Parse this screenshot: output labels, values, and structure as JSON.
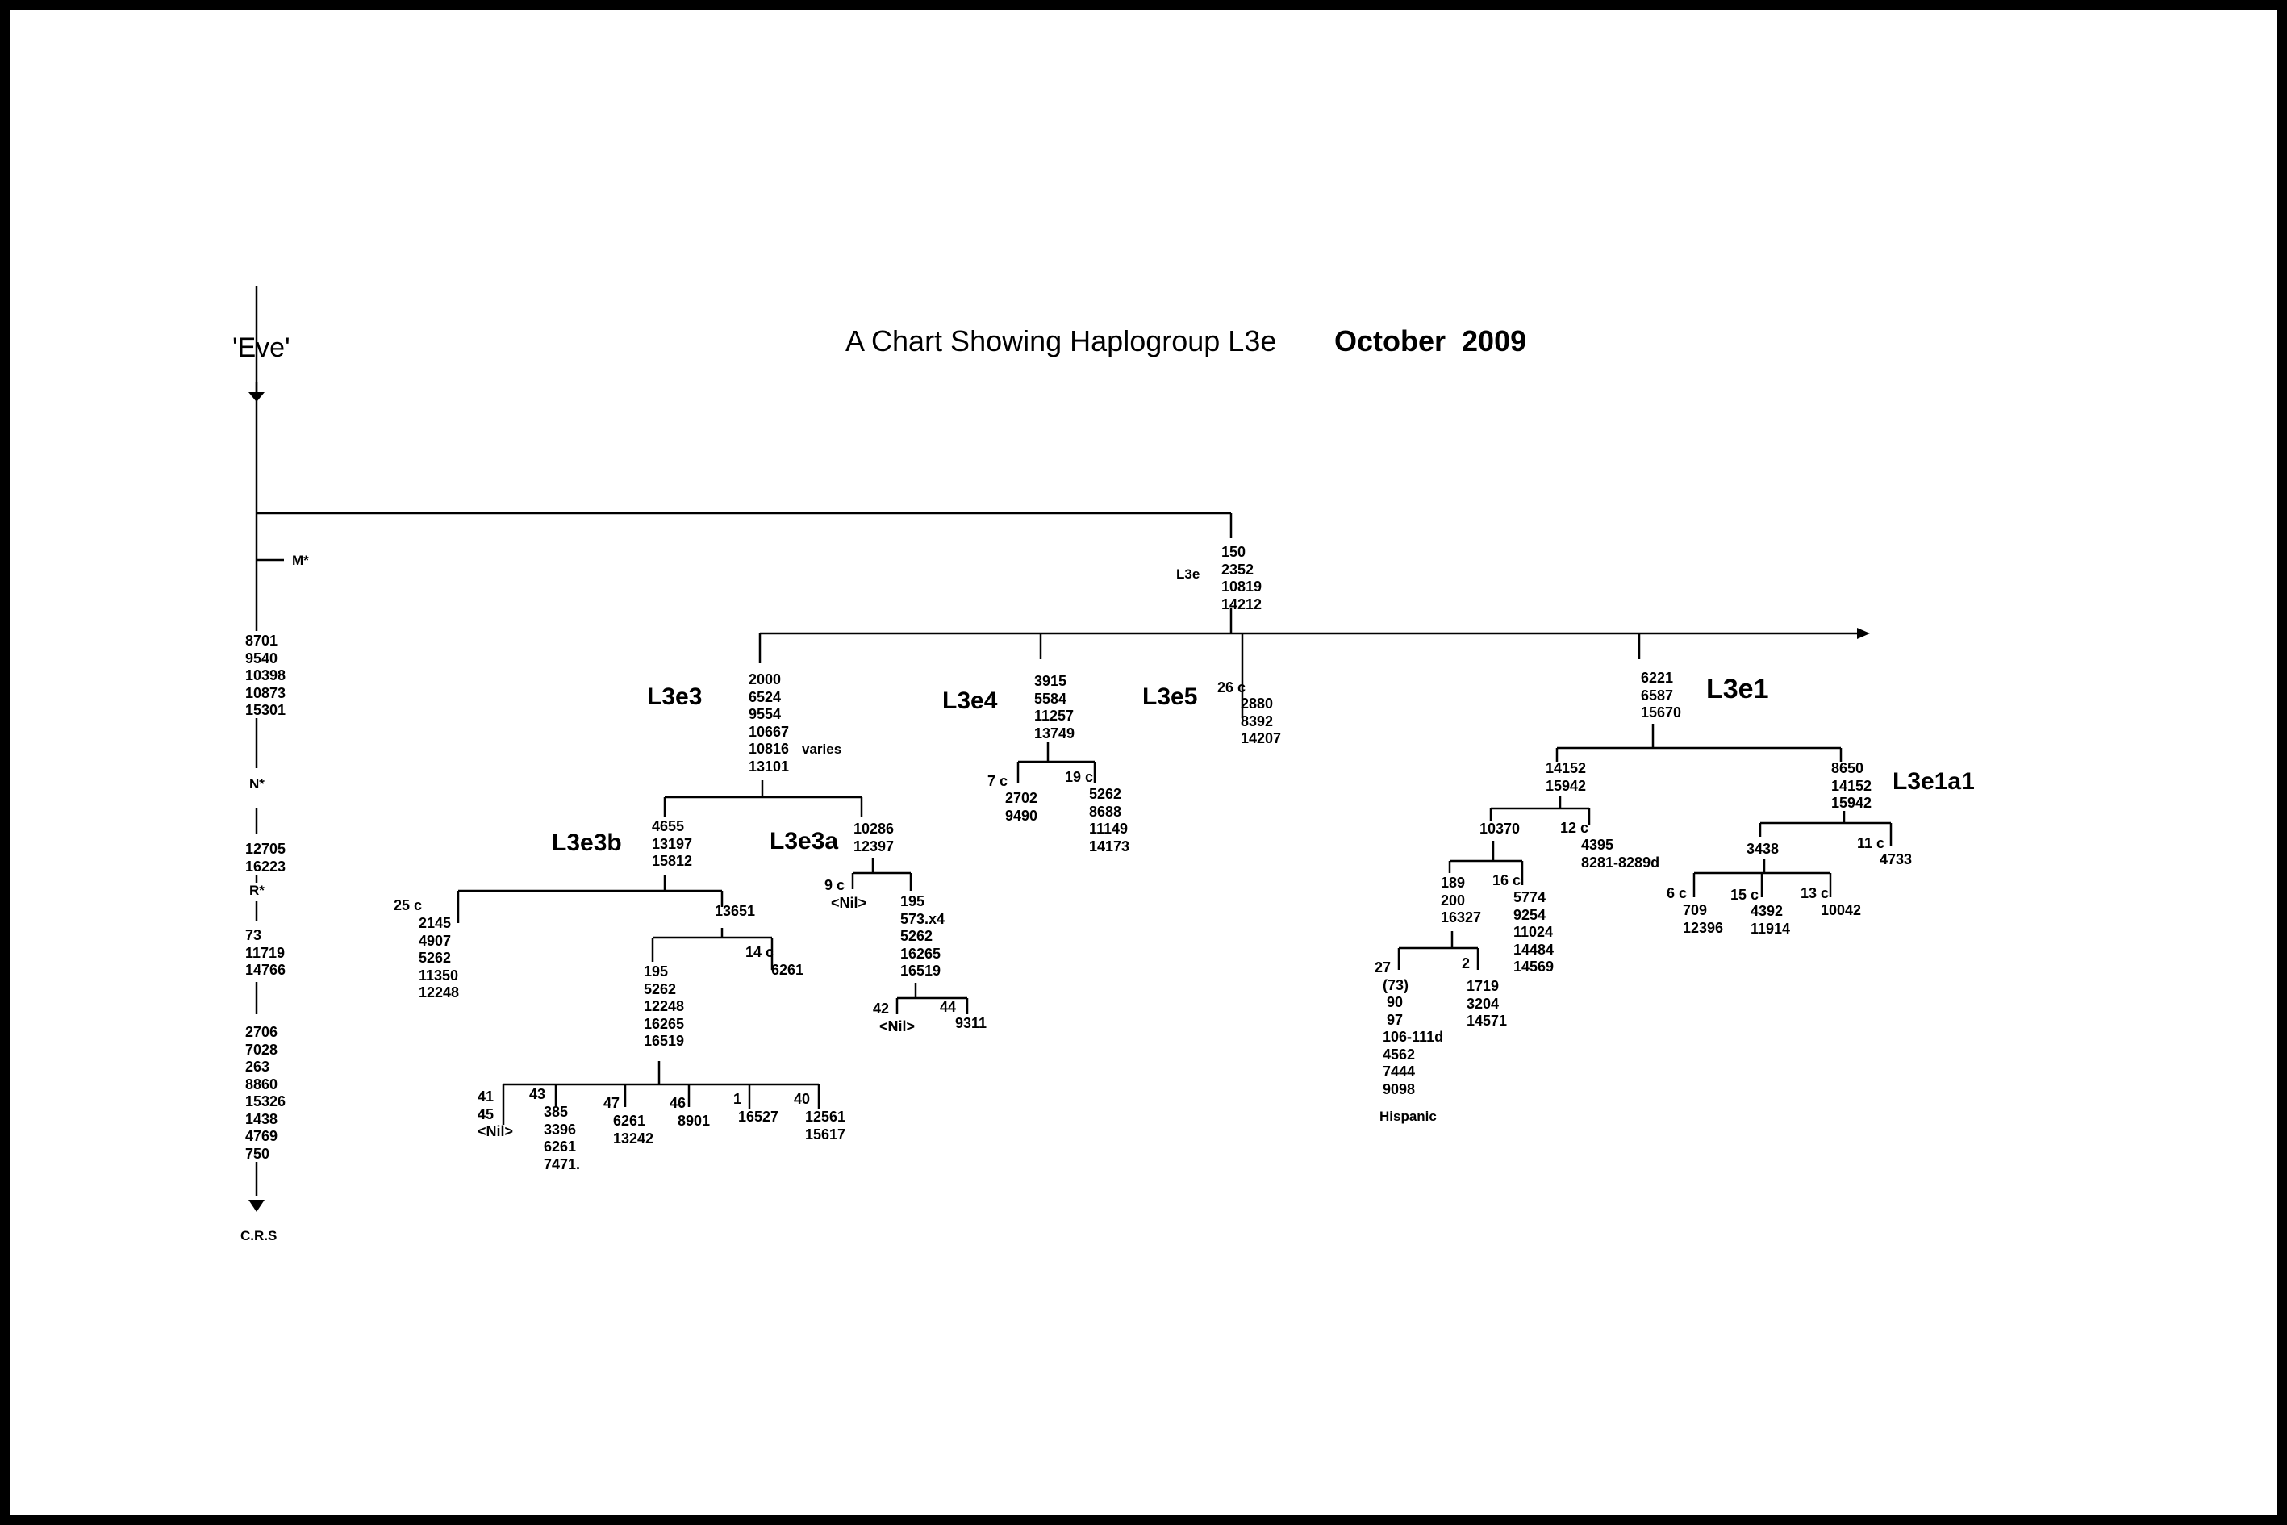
{
  "title": "A Chart Showing Haplogroup L3e",
  "date": "October  2009",
  "root_label": "'Eve'",
  "crs_label": "C.R.S",
  "trunk": {
    "m_label": "M*",
    "block_1": "8701\n9540\n10398\n10873\n15301",
    "n_label": "N*",
    "block_2": "12705\n16223",
    "r_label": "R*",
    "block_3": "73\n11719\n14766",
    "block_4": "2706\n7028\n263\n8860\n15326\n1438\n4769\n750"
  },
  "l3e": {
    "label": "L3e",
    "mutations": "150\n2352\n10819\n14212"
  },
  "l3e3": {
    "label": "L3e3",
    "mutations": "2000\n6524\n9554\n10667\n10816\n13101",
    "varies_note": "varies",
    "l3e3b": {
      "label": "L3e3b",
      "mutations": "4655\n13197\n15812",
      "c25_tag": "25 c",
      "c25_mutations": "2145\n4907\n5262\n11350\n12248",
      "n13651": "13651",
      "c14_tag": "14 c",
      "c14_mutations": "6261",
      "sub_mutations": "195\n5262\n12248\n16265\n16519",
      "leaves": {
        "l41": "41\n45\n<Nil>",
        "l43_tag": "43",
        "l43": "385\n3396\n6261\n7471.",
        "l47_tag": "47",
        "l47": "6261\n13242",
        "l46_tag": "46",
        "l46": "8901",
        "l1_tag": "1",
        "l1": "16527",
        "l40_tag": "40",
        "l40": "12561\n15617"
      }
    },
    "l3e3a": {
      "label": "L3e3a",
      "mutations": "10286\n12397",
      "c9_tag": "9 c",
      "c9_nil": "<Nil>",
      "sub_mutations": "195\n573.x4\n5262\n16265\n16519",
      "l42_tag": "42",
      "l42_nil": "<Nil>",
      "l44_tag": "44",
      "l44": "9311"
    }
  },
  "l3e4": {
    "label": "L3e4",
    "mutations": "3915\n5584\n11257\n13749",
    "c7_tag": "7 c",
    "c7_mutations": "2702\n9490",
    "c19_tag": "19 c",
    "c19_mutations": "5262\n8688\n11149\n14173"
  },
  "l3e5": {
    "label": "L3e5",
    "c26_tag": "26 c",
    "mutations": "2880\n8392\n14207"
  },
  "l3e1": {
    "label": "L3e1",
    "mutations": "6221\n6587\n15670",
    "left": {
      "mutations": "14152\n15942",
      "n10370": "10370",
      "c12_tag": "12 c",
      "c12_mutations": "4395\n8281-8289d",
      "sub_mutations": "189\n200\n16327",
      "c16_tag": "16 c",
      "c16_mutations": "5774\n9254\n11024\n14484\n14569",
      "l27": "27\n  (73)\n   90\n   97\n  106-111d\n  4562\n  7444\n  9098",
      "hispanic": "Hispanic",
      "l2_tag": "2",
      "l2": "1719\n3204\n14571"
    },
    "l3e1a1": {
      "label": "L3e1a1",
      "mutations": "8650\n14152\n15942",
      "n3438": "3438",
      "c11_tag": "11 c",
      "c11_mutations": "4733",
      "c6_tag": "6 c",
      "c6_mutations": "709\n12396",
      "c15_tag": "15 c",
      "c15_mutations": "4392\n11914",
      "c13_tag": "13 c",
      "c13_mutations": "10042"
    }
  }
}
